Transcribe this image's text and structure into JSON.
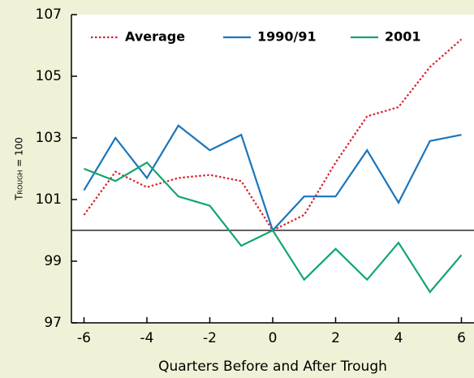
{
  "chart_data": {
    "type": "line",
    "x": [
      -6,
      -5,
      -4,
      -3,
      -2,
      -1,
      0,
      1,
      2,
      3,
      4,
      5,
      6
    ],
    "series": [
      {
        "name": "Average",
        "color": "#d9232e",
        "line_style": "dotted",
        "values": [
          100.5,
          101.9,
          101.4,
          101.7,
          101.8,
          101.6,
          100,
          100.5,
          102.2,
          103.7,
          104.0,
          105.3,
          106.2
        ]
      },
      {
        "name": "1990/91",
        "color": "#1a75bb",
        "line_style": "solid",
        "values": [
          101.3,
          103.0,
          101.7,
          103.4,
          102.6,
          103.1,
          100,
          101.1,
          101.1,
          102.6,
          100.9,
          102.9,
          103.1
        ]
      },
      {
        "name": "2001",
        "color": "#12a56f",
        "line_style": "solid",
        "values": [
          102.0,
          101.6,
          102.2,
          101.1,
          100.8,
          99.5,
          100,
          98.4,
          99.4,
          98.4,
          99.6,
          98.0,
          99.2
        ]
      }
    ],
    "xlabel": "Quarters Before and After Trough",
    "ylabel": "Trough = 100",
    "xlim": [
      -6.4,
      6.4
    ],
    "xticks": [
      -6,
      -4,
      -2,
      0,
      2,
      4,
      6
    ],
    "ylim": [
      97,
      107
    ],
    "yticks": [
      97,
      99,
      101,
      103,
      105,
      107
    ],
    "reference_line": 100,
    "legend": "top"
  }
}
